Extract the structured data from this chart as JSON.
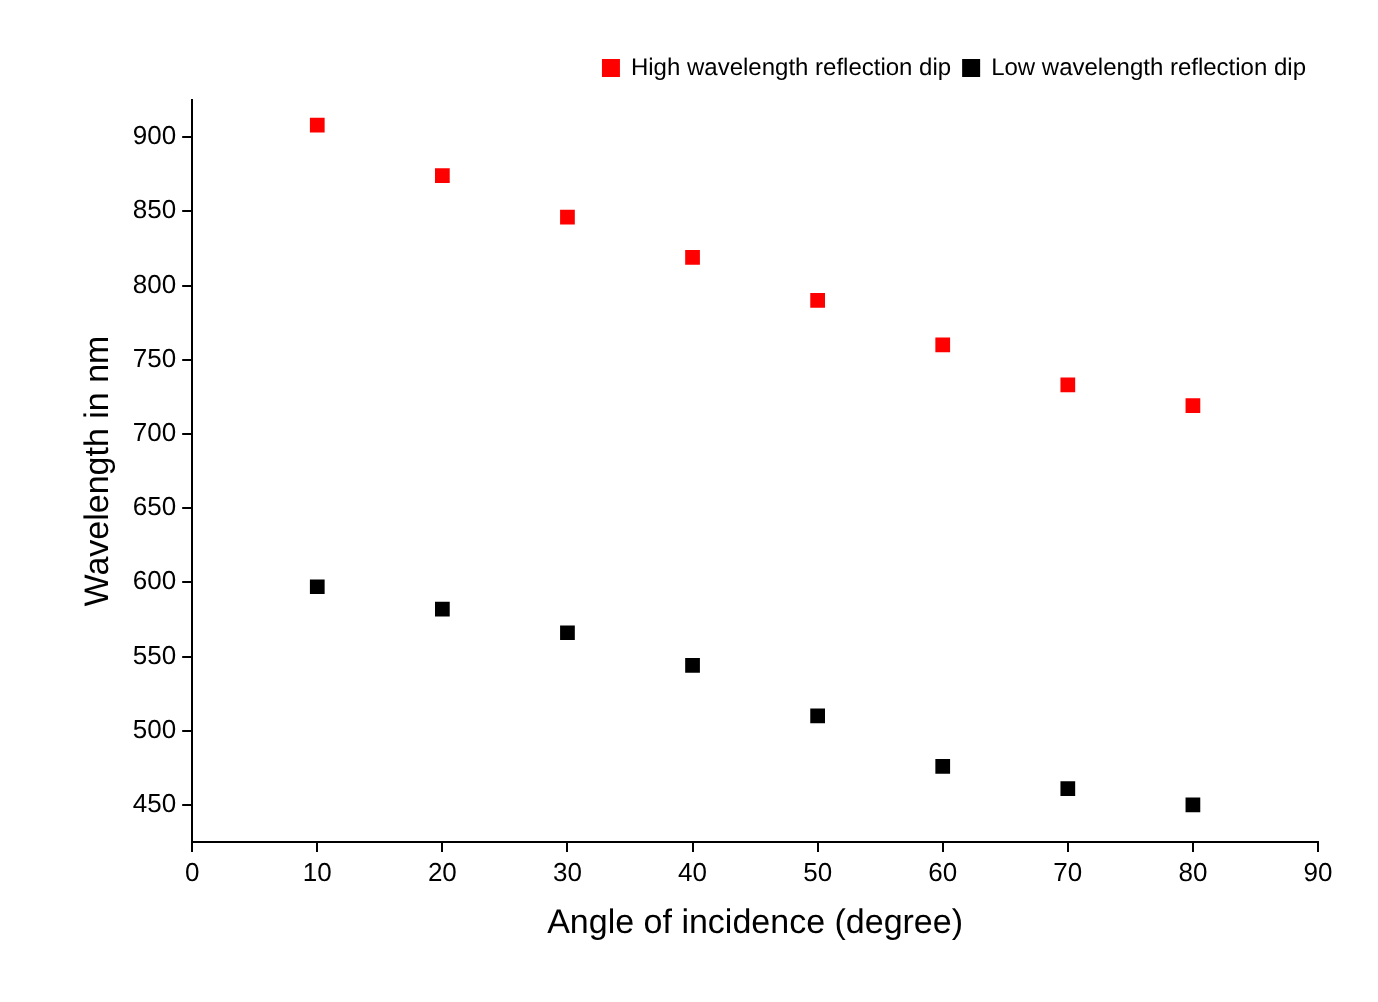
{
  "chart_data": {
    "type": "scatter",
    "xlabel": "Angle of incidence (degree)",
    "ylabel": "Wavelength in nm",
    "x": [
      10,
      20,
      30,
      40,
      50,
      60,
      70,
      80
    ],
    "series": [
      {
        "name": "High wavelength reflection dip",
        "color": "#ff0000",
        "values": [
          908,
          874,
          846,
          819,
          790,
          760,
          733,
          719
        ]
      },
      {
        "name": "Low wavelength reflection dip",
        "color": "#000000",
        "values": [
          597,
          582,
          566,
          544,
          510,
          476,
          461,
          450
        ]
      }
    ],
    "xlim": [
      0,
      90
    ],
    "xticks": [
      0,
      10,
      20,
      30,
      40,
      50,
      60,
      70,
      80,
      90
    ],
    "ylim": [
      425,
      925
    ],
    "yticks": [
      450,
      500,
      550,
      600,
      650,
      700,
      750,
      800,
      850,
      900
    ],
    "marker": "square",
    "grid": false,
    "legend": "top right"
  }
}
